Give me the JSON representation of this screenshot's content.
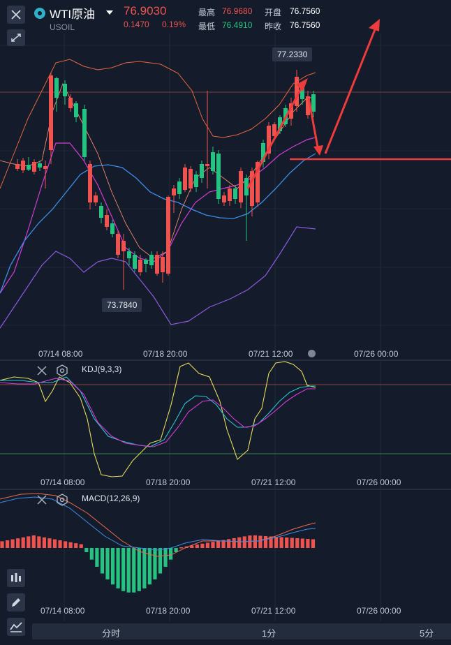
{
  "header": {
    "title": "WTI原油",
    "symbol": "USOIL",
    "price": "76.9030",
    "change": "0.1470",
    "change_pct": "0.19%",
    "high_label": "最高",
    "high_value": "76.9680",
    "low_label": "最低",
    "low_value": "76.4910",
    "open_label": "开盘",
    "open_value": "76.7560",
    "prev_close_label": "昨收",
    "prev_close_value": "76.7560"
  },
  "main_chart": {
    "max_label": "77.2330",
    "min_label": "73.7840",
    "x_ticks": [
      "07/14 08:00",
      "07/18 20:00",
      "07/21 12:00",
      "07/26 00:00"
    ]
  },
  "kdj": {
    "title": "KDJ(9,3,3)",
    "x_ticks": [
      "07/14 08:00",
      "07/18 20:00",
      "07/21 12:00",
      "07/26 00:00"
    ]
  },
  "macd": {
    "title": "MACD(12,26,9)",
    "x_ticks": [
      "07/14 08:00",
      "07/18 20:00",
      "07/21 12:00",
      "07/26 00:00"
    ]
  },
  "bottom_tabs": [
    "分时",
    "1分",
    "5分"
  ],
  "colors": {
    "up": "#ef5350",
    "down": "#26c281",
    "background": "#141c2b",
    "ma_blue": "#3d8ee8",
    "ma_magenta": "#d63bd6",
    "ma_purple": "#8d5ae0",
    "ma_orange": "#e5653f",
    "kdj_k": "#e6dc5a",
    "kdj_d": "#2ec4d6",
    "kdj_j": "#d63bd6"
  }
}
